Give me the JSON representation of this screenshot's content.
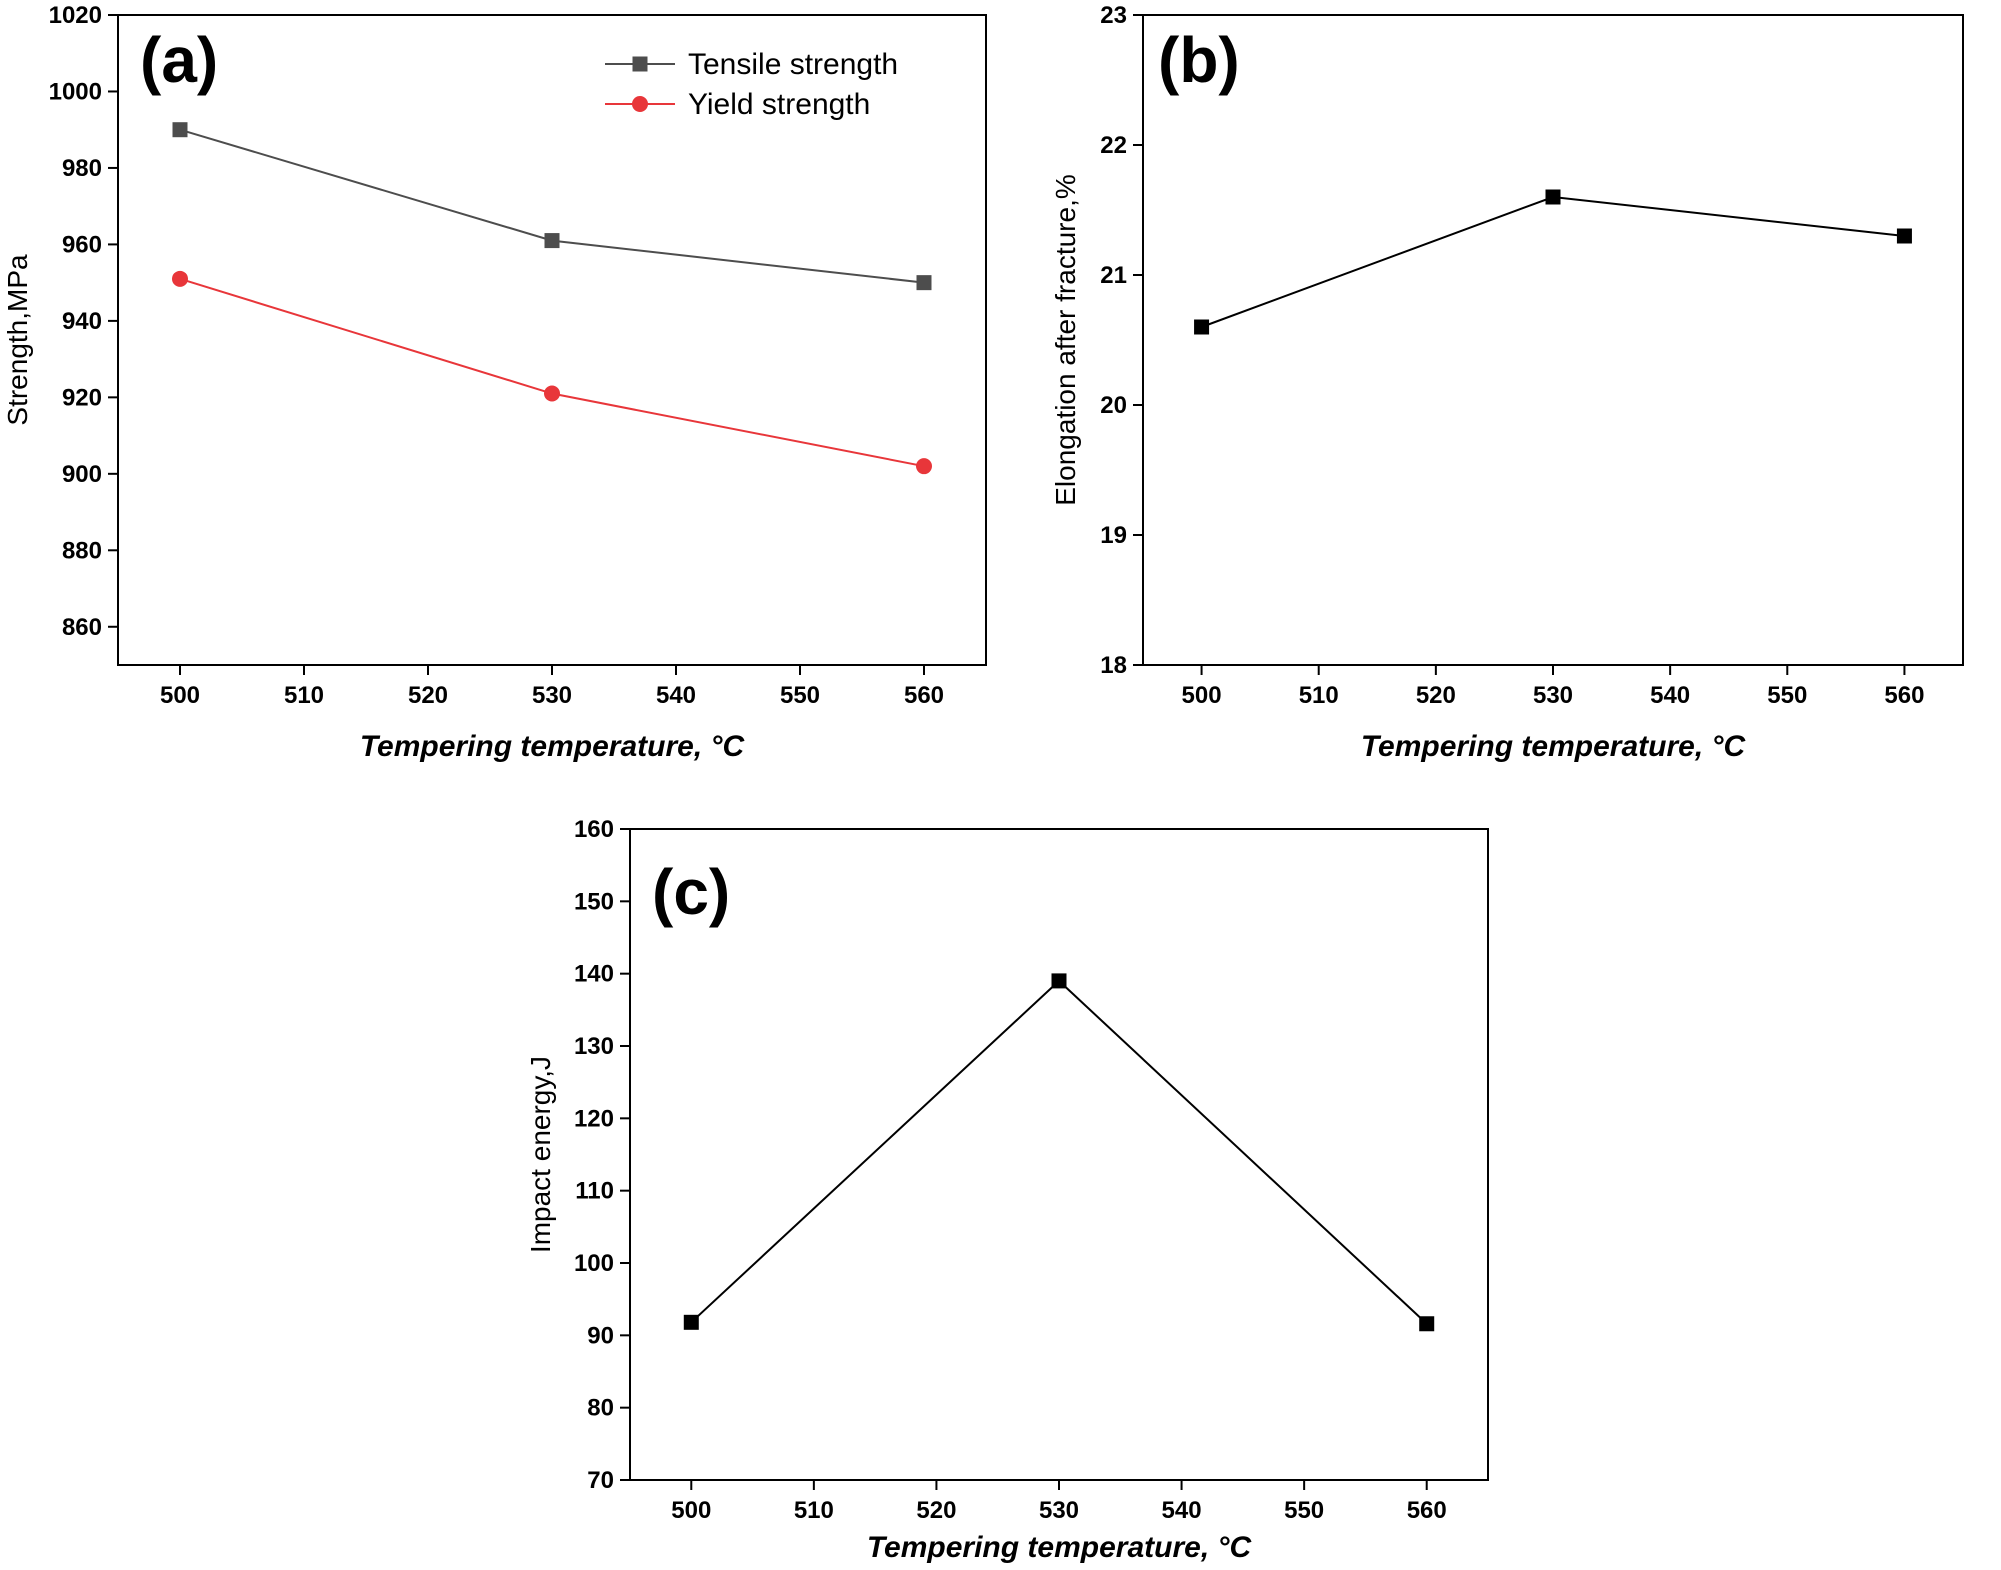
{
  "chart_data": [
    {
      "type": "line",
      "panel_label": "(a)",
      "xlabel": "Tempering  temperature, °C",
      "ylabel": "Strength,MPa",
      "x": [
        500,
        530,
        560
      ],
      "xlim": [
        495,
        565
      ],
      "ylim": [
        850,
        1020
      ],
      "xticks": [
        500,
        510,
        520,
        530,
        540,
        550,
        560
      ],
      "yticks": [
        860,
        880,
        900,
        920,
        940,
        960,
        980,
        1000,
        1020
      ],
      "legend_position": "top-right",
      "series": [
        {
          "name": "Tensile strength",
          "values": [
            990,
            961,
            950
          ],
          "color": "#4d4d4d",
          "marker": "square"
        },
        {
          "name": "Yield strength",
          "values": [
            951,
            921,
            902
          ],
          "color": "#e8363a",
          "marker": "circle"
        }
      ]
    },
    {
      "type": "line",
      "panel_label": "(b)",
      "xlabel": "Tempering  temperature, °C",
      "ylabel": "Elongation after fracture,%",
      "x": [
        500,
        530,
        560
      ],
      "xlim": [
        495,
        565
      ],
      "ylim": [
        18,
        23
      ],
      "xticks": [
        500,
        510,
        520,
        530,
        540,
        550,
        560
      ],
      "yticks": [
        18,
        19,
        20,
        21,
        22,
        23
      ],
      "series": [
        {
          "name": "Elongation",
          "values": [
            20.6,
            21.6,
            21.3
          ],
          "color": "#000000",
          "marker": "square"
        }
      ]
    },
    {
      "type": "line",
      "panel_label": "(c)",
      "xlabel": "Tempering  temperature, °C",
      "ylabel": "Impact energy,J",
      "x": [
        500,
        530,
        560
      ],
      "xlim": [
        495,
        565
      ],
      "ylim": [
        70,
        160
      ],
      "xticks": [
        500,
        510,
        520,
        530,
        540,
        550,
        560
      ],
      "yticks": [
        70,
        80,
        90,
        100,
        110,
        120,
        130,
        140,
        150,
        160
      ],
      "series": [
        {
          "name": "Impact energy",
          "values": [
            91.8,
            139,
            91.6
          ],
          "color": "#000000",
          "marker": "square"
        }
      ]
    }
  ]
}
